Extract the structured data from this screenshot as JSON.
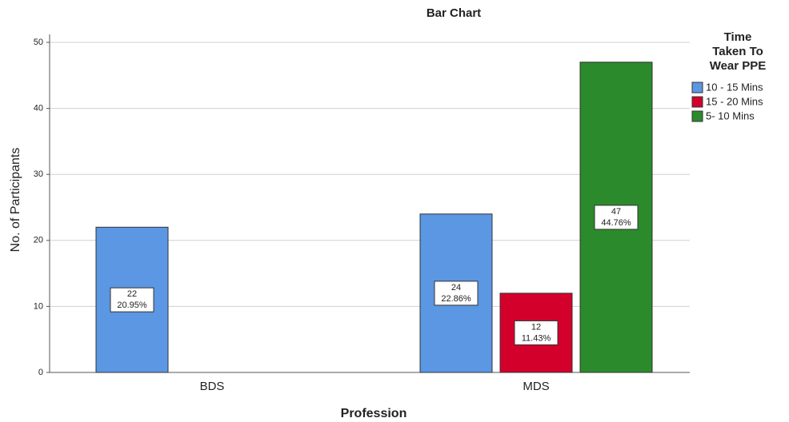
{
  "chart_data": {
    "type": "bar",
    "title": "Bar Chart",
    "x_label": "Profession",
    "y_label": "No. of Participants",
    "categories": [
      "BDS",
      "MDS"
    ],
    "series": [
      {
        "name": "10 - 15 Mins",
        "color": "#5b97e2",
        "values": [
          22,
          24
        ],
        "value_labels": [
          [
            "22",
            "20.95%"
          ],
          [
            "24",
            "22.86%"
          ]
        ]
      },
      {
        "name": "15 - 20 Mins",
        "color": "#d4002c",
        "values": [
          null,
          12
        ],
        "value_labels": [
          null,
          [
            "12",
            "11.43%"
          ]
        ]
      },
      {
        "name": "5- 10 Mins",
        "color": "#2b8a2b",
        "values": [
          null,
          47
        ],
        "value_labels": [
          null,
          [
            "47",
            "44.76%"
          ]
        ]
      }
    ],
    "legend_title": [
      "Time",
      "Taken To",
      "Wear PPE"
    ],
    "legend": "right",
    "ylim": [
      0,
      50
    ],
    "yticks": [
      0,
      10,
      20,
      30,
      40,
      50
    ],
    "grid": true
  }
}
